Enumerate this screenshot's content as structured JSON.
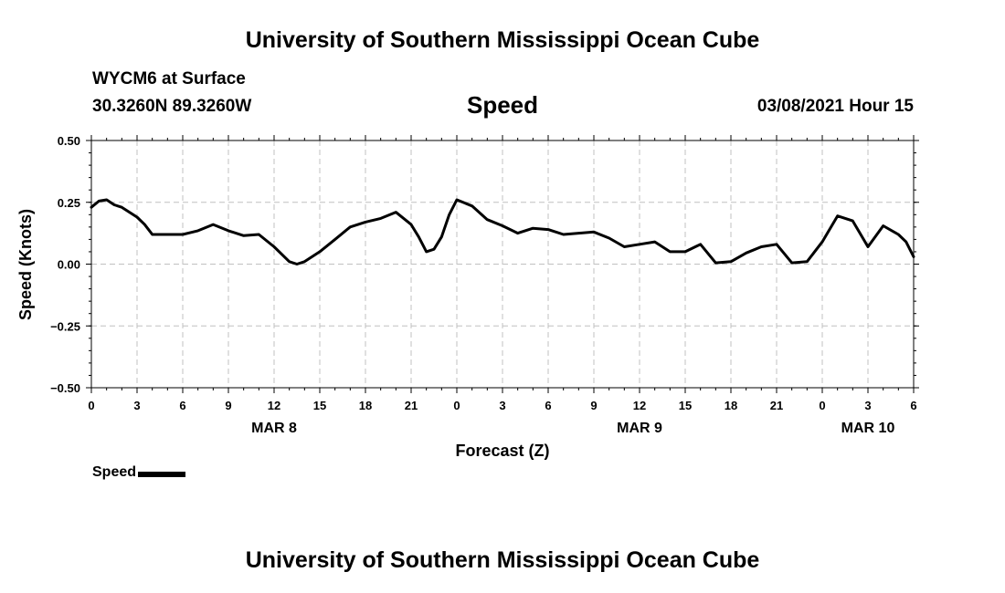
{
  "header": {
    "title": "University of Southern Mississippi Ocean Cube",
    "station": "WYCM6 at Surface",
    "coords": "30.3260N 89.3260W",
    "parameter": "Speed",
    "datetime": "03/08/2021 Hour 15"
  },
  "footer": {
    "title": "University of Southern Mississippi Ocean Cube"
  },
  "legend": {
    "items": [
      {
        "label": "Speed",
        "color": "#000000"
      }
    ]
  },
  "chart_data": {
    "type": "line",
    "xlabel": "Forecast (Z)",
    "ylabel": "Speed (Knots)",
    "ylim": [
      -0.5,
      0.5
    ],
    "yticks": [
      "0.50",
      "0.25",
      "0.00",
      "-0.25",
      "-0.50"
    ],
    "xlim": [
      0,
      54
    ],
    "xtick_labels": [
      "0",
      "3",
      "6",
      "9",
      "12",
      "15",
      "18",
      "21",
      "0",
      "3",
      "6",
      "9",
      "12",
      "15",
      "18",
      "21",
      "0",
      "3",
      "6"
    ],
    "date_labels": [
      {
        "label": "MAR 8",
        "at_hour": 12
      },
      {
        "label": "MAR 9",
        "at_hour": 36
      },
      {
        "label": "MAR 10",
        "at_hour": 51
      }
    ],
    "grid": true,
    "legend_position": "bottom-left",
    "series": [
      {
        "name": "Speed",
        "color": "#000000",
        "x": [
          0,
          0.5,
          1,
          1.5,
          2,
          3,
          3.5,
          4,
          5,
          6,
          7,
          8,
          9,
          10,
          11,
          12,
          13,
          13.5,
          14,
          15,
          16,
          17,
          18,
          19,
          20,
          21,
          21.5,
          22,
          22.5,
          23,
          23.5,
          24,
          25,
          26,
          27,
          28,
          29,
          30,
          31,
          32,
          33,
          34,
          35,
          36,
          37,
          38,
          39,
          40,
          41,
          42,
          43,
          44,
          45,
          46,
          47,
          48,
          49,
          50,
          51,
          52,
          53,
          53.5,
          54
        ],
        "values": [
          0.23,
          0.255,
          0.26,
          0.24,
          0.23,
          0.19,
          0.16,
          0.12,
          0.12,
          0.12,
          0.135,
          0.16,
          0.135,
          0.115,
          0.12,
          0.07,
          0.01,
          0.0,
          0.01,
          0.05,
          0.1,
          0.15,
          0.17,
          0.185,
          0.21,
          0.16,
          0.11,
          0.05,
          0.06,
          0.11,
          0.2,
          0.26,
          0.235,
          0.18,
          0.155,
          0.125,
          0.145,
          0.14,
          0.12,
          0.125,
          0.13,
          0.105,
          0.07,
          0.08,
          0.09,
          0.05,
          0.05,
          0.08,
          0.005,
          0.01,
          0.045,
          0.07,
          0.08,
          0.005,
          0.01,
          0.09,
          0.195,
          0.175,
          0.07,
          0.155,
          0.12,
          0.09,
          0.03
        ]
      }
    ]
  }
}
